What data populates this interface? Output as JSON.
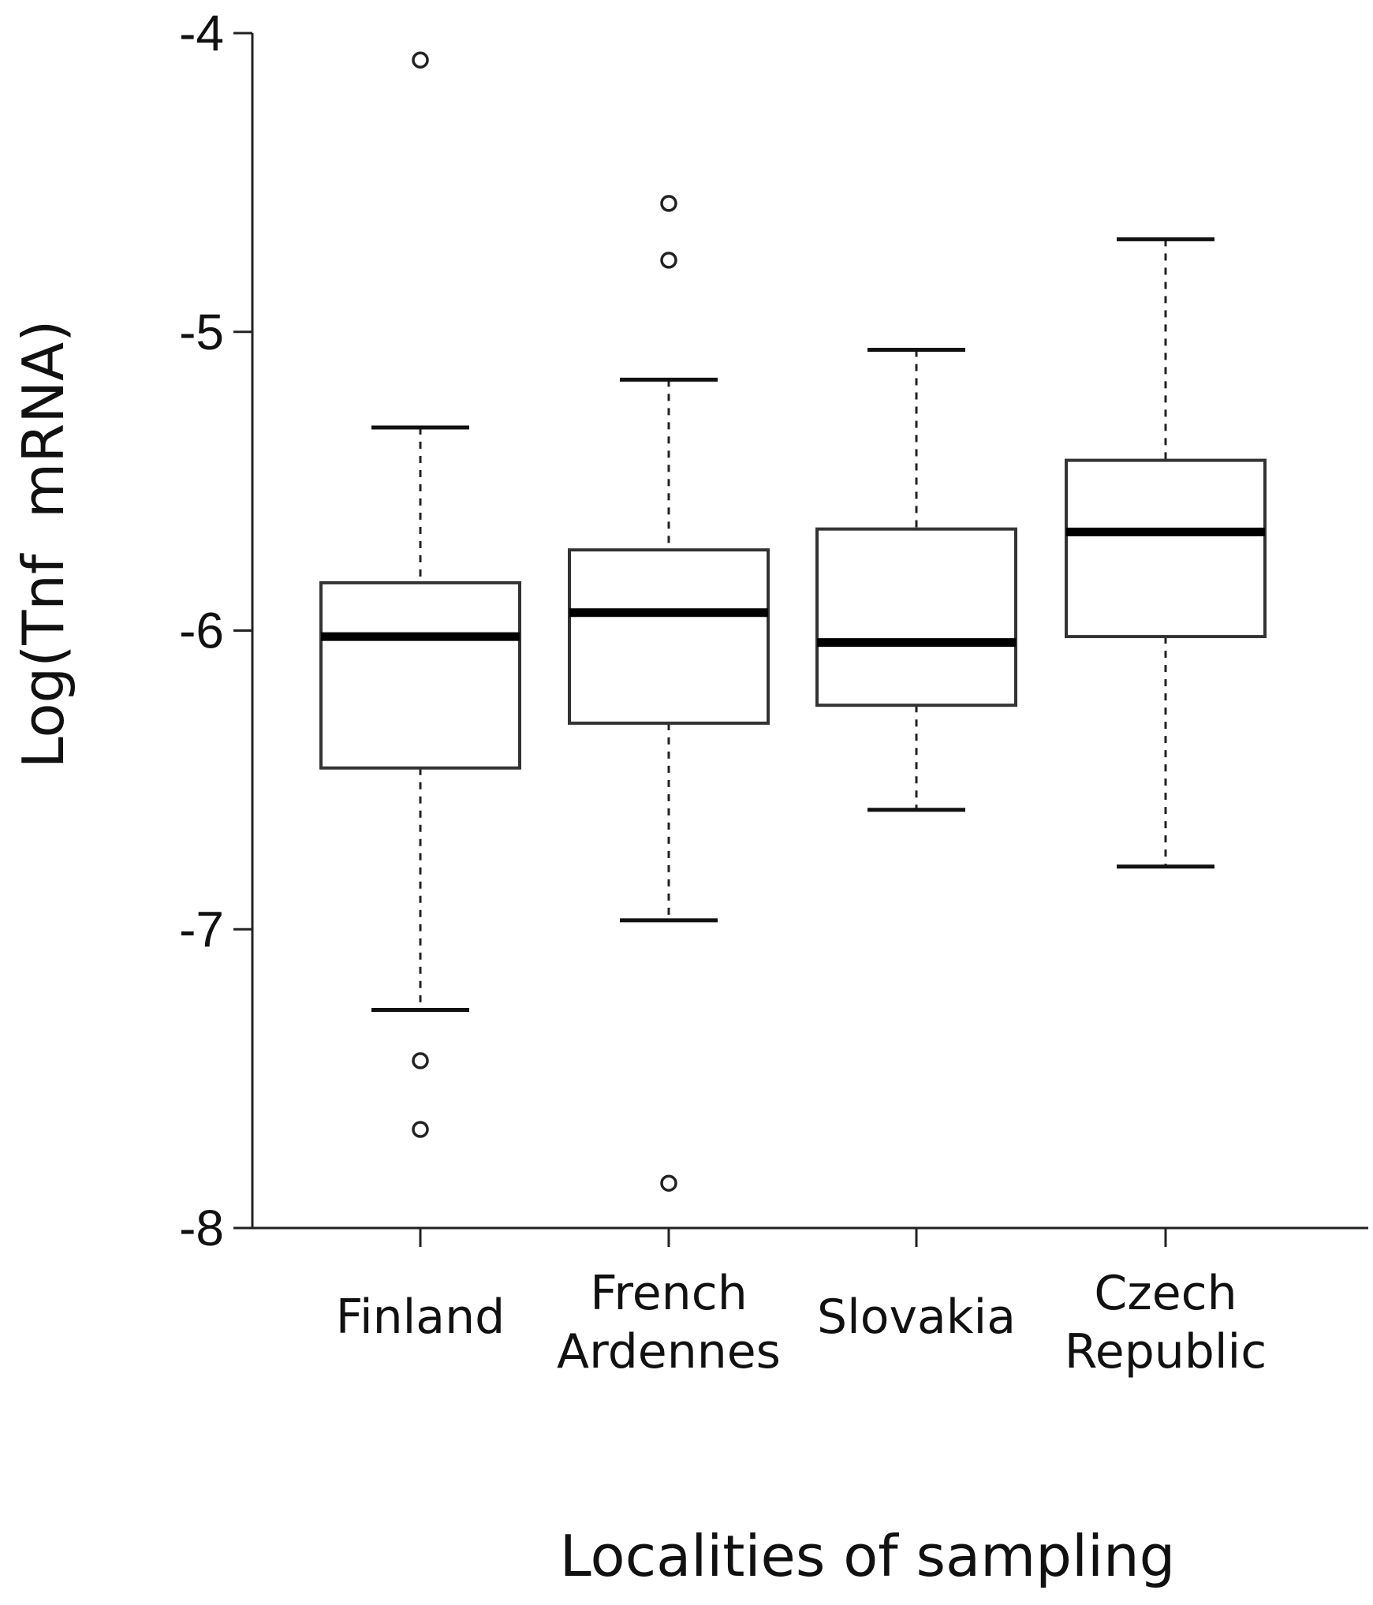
{
  "chart_data": {
    "type": "box",
    "xlabel": "Localities of sampling",
    "ylabel": "Log(Tnf  mRNA)",
    "ylim": [
      -8,
      -4
    ],
    "yticks": [
      "-4",
      "-5",
      "-6",
      "-7",
      "-8"
    ],
    "grid": false,
    "categories": [
      {
        "lines": [
          "Finland"
        ]
      },
      {
        "lines": [
          "French",
          "Ardennes"
        ]
      },
      {
        "lines": [
          "Slovakia"
        ]
      },
      {
        "lines": [
          "Czech",
          "Republic"
        ]
      }
    ],
    "boxes": [
      {
        "whisker_low": -7.27,
        "q1": -6.46,
        "median": -6.02,
        "q3": -5.84,
        "whisker_high": -5.32,
        "outliers": [
          -4.09,
          -7.44,
          -7.67
        ]
      },
      {
        "whisker_low": -6.97,
        "q1": -6.31,
        "median": -5.94,
        "q3": -5.73,
        "whisker_high": -5.16,
        "outliers": [
          -4.57,
          -4.76,
          -7.85
        ]
      },
      {
        "whisker_low": -6.6,
        "q1": -6.25,
        "median": -6.04,
        "q3": -5.66,
        "whisker_high": -5.06,
        "outliers": []
      },
      {
        "whisker_low": -6.79,
        "q1": -6.02,
        "median": -5.67,
        "q3": -5.43,
        "whisker_high": -4.69,
        "outliers": []
      }
    ]
  }
}
